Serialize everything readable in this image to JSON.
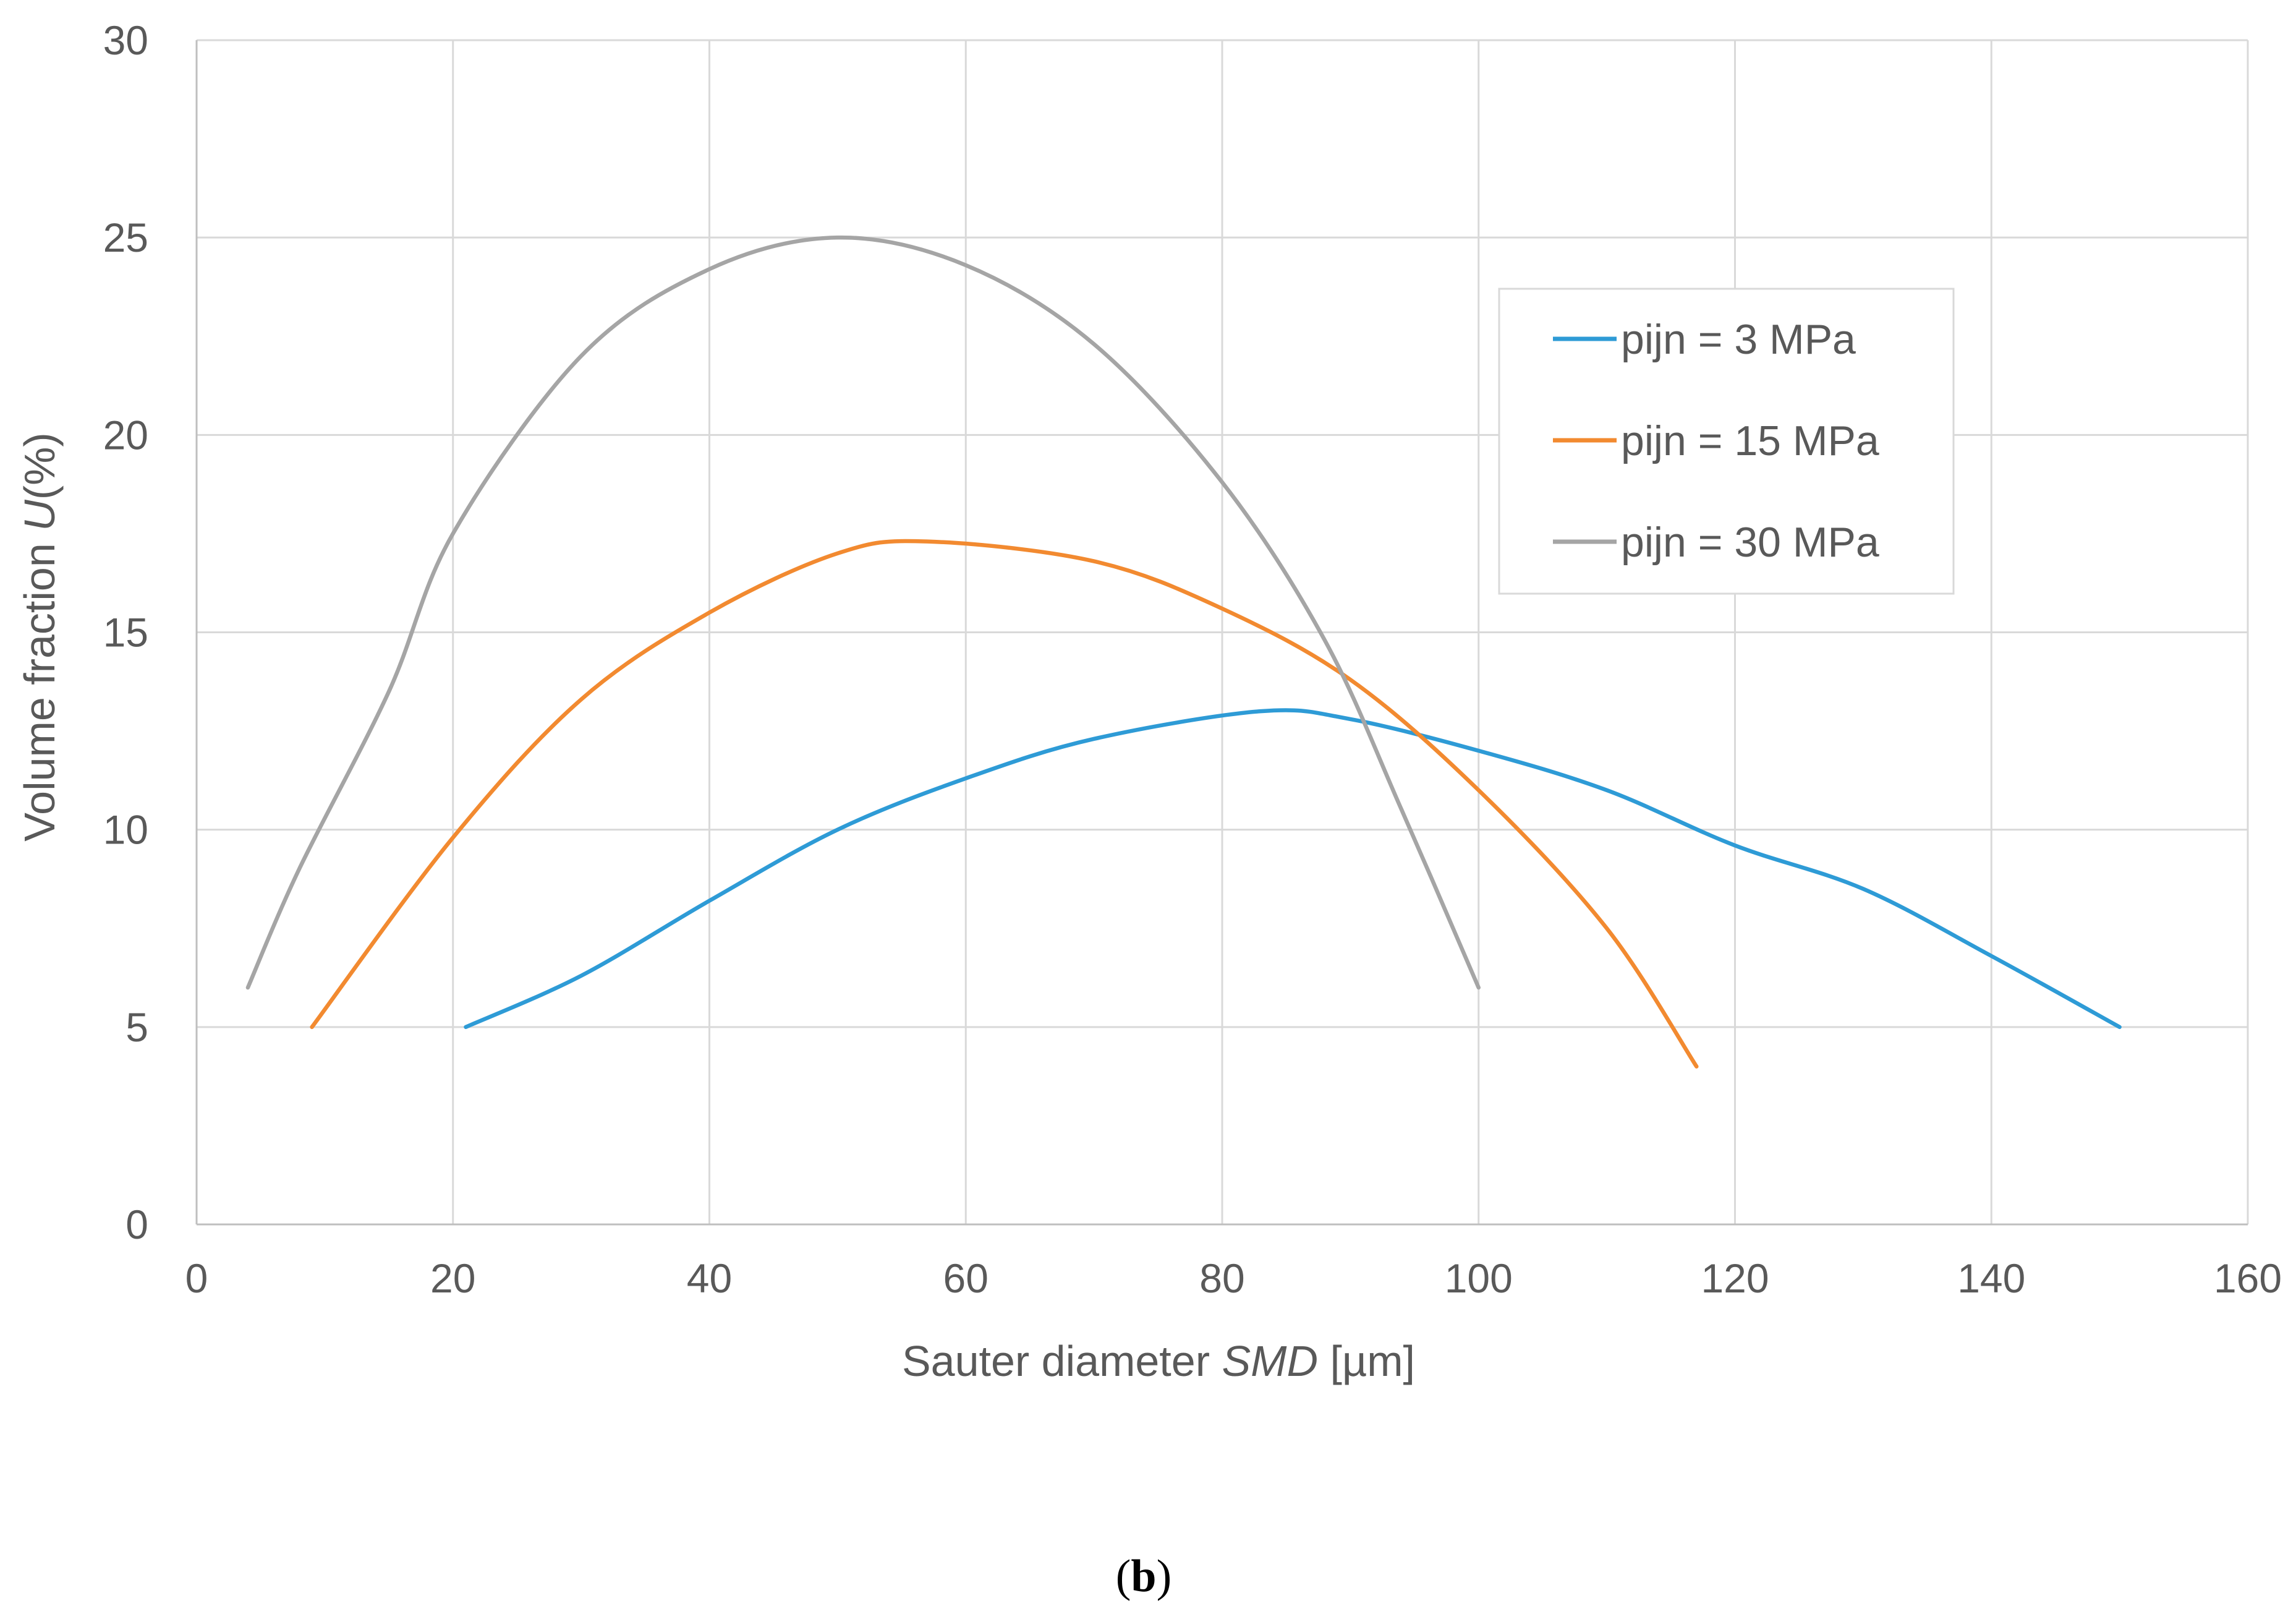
{
  "chart_data": {
    "type": "line",
    "title": "",
    "xlabel_prefix": "Sauter diameter ",
    "xlabel_italic": "SMD",
    "xlabel_suffix": " [µm]",
    "ylabel_prefix": "Volume fraction ",
    "ylabel_italic": "U",
    "ylabel_suffix": "(%)",
    "xlim": [
      0,
      160
    ],
    "ylim": [
      0,
      30
    ],
    "xticks": [
      0,
      20,
      40,
      60,
      80,
      100,
      120,
      140,
      160
    ],
    "yticks": [
      0,
      5,
      10,
      15,
      20,
      25,
      30
    ],
    "grid": true,
    "legend_position": "top-right",
    "series": [
      {
        "name": "pijn = 3 MPa",
        "color": "#2e9bd6",
        "points": [
          [
            21,
            5
          ],
          [
            30,
            6.3
          ],
          [
            40,
            8.2
          ],
          [
            50,
            10
          ],
          [
            60,
            11.3
          ],
          [
            70,
            12.3
          ],
          [
            83,
            13
          ],
          [
            90,
            12.8
          ],
          [
            100,
            12
          ],
          [
            110,
            11
          ],
          [
            120,
            9.6
          ],
          [
            130,
            8.5
          ],
          [
            140,
            6.8
          ],
          [
            150,
            5
          ]
        ]
      },
      {
        "name": "pijn = 15 MPa",
        "color": "#f28a30",
        "points": [
          [
            9,
            5
          ],
          [
            20,
            9.8
          ],
          [
            30,
            13.3
          ],
          [
            40,
            15.5
          ],
          [
            50,
            17
          ],
          [
            57,
            17.3
          ],
          [
            70,
            16.8
          ],
          [
            80,
            15.6
          ],
          [
            90,
            13.8
          ],
          [
            100,
            11
          ],
          [
            110,
            7.5
          ],
          [
            117,
            4
          ]
        ]
      },
      {
        "name": "pijn = 30 MPa",
        "color": "#a5a5a5",
        "points": [
          [
            4,
            6
          ],
          [
            8,
            9
          ],
          [
            15,
            13.5
          ],
          [
            20,
            17.5
          ],
          [
            30,
            22
          ],
          [
            40,
            24.2
          ],
          [
            50,
            25
          ],
          [
            60,
            24.3
          ],
          [
            70,
            22.3
          ],
          [
            80,
            18.8
          ],
          [
            88,
            14.8
          ],
          [
            94,
            10.5
          ],
          [
            100,
            6
          ]
        ]
      }
    ]
  },
  "caption": {
    "open": "(",
    "letter": "b",
    "close": ")"
  }
}
